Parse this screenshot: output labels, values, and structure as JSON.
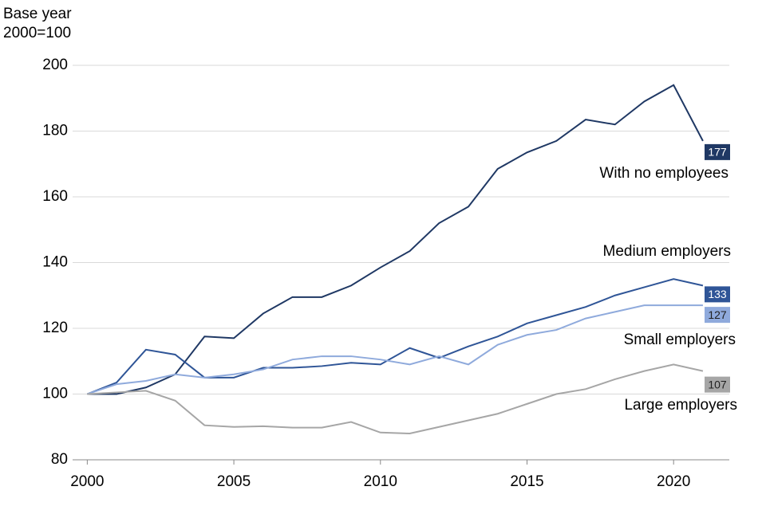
{
  "chart_data": {
    "type": "line",
    "y_label": [
      "Base year",
      "2000=100"
    ],
    "x": [
      2000,
      2001,
      2002,
      2003,
      2004,
      2005,
      2006,
      2007,
      2008,
      2009,
      2010,
      2011,
      2012,
      2013,
      2014,
      2015,
      2016,
      2017,
      2018,
      2019,
      2020,
      2021
    ],
    "series": [
      {
        "name": "With no employees",
        "color": "#1f3864",
        "label_text_color": "#ffffff",
        "values": [
          100,
          100,
          102,
          106,
          117.5,
          117,
          124.5,
          129.5,
          129.5,
          133,
          138.5,
          143.5,
          152,
          157,
          168.5,
          173.5,
          177,
          183.5,
          182,
          189,
          194,
          177
        ]
      },
      {
        "name": "Medium employers",
        "color": "#2f5597",
        "label_text_color": "#ffffff",
        "values": [
          100,
          103.5,
          113.5,
          112,
          105,
          105,
          108,
          108,
          108.5,
          109.5,
          109,
          114,
          111,
          114.5,
          117.5,
          121.5,
          124,
          126.5,
          130,
          132.5,
          135,
          133
        ]
      },
      {
        "name": "Small employers",
        "color": "#8faadc",
        "label_text_color": "#1f1f1f",
        "values": [
          100,
          103,
          104,
          106,
          105,
          106,
          107.5,
          110.5,
          111.5,
          111.5,
          110.5,
          109,
          111.5,
          109,
          115,
          118,
          119.5,
          123,
          125,
          127,
          127,
          127
        ]
      },
      {
        "name": "Large employers",
        "color": "#a6a6a6",
        "label_text_color": "#1f1f1f",
        "values": [
          100,
          100.5,
          101,
          98,
          90.5,
          90,
          90.2,
          89.8,
          89.8,
          91.5,
          88.3,
          88,
          90,
          92,
          94,
          97,
          100,
          101.5,
          104.5,
          107,
          109,
          107
        ]
      }
    ],
    "xlim": [
      1999.5,
      2021.9
    ],
    "xticks": [
      2000,
      2005,
      2010,
      2015,
      2020
    ],
    "ylim": [
      80,
      200
    ],
    "yticks": [
      80,
      100,
      120,
      140,
      160,
      180,
      200
    ],
    "grid": true
  }
}
